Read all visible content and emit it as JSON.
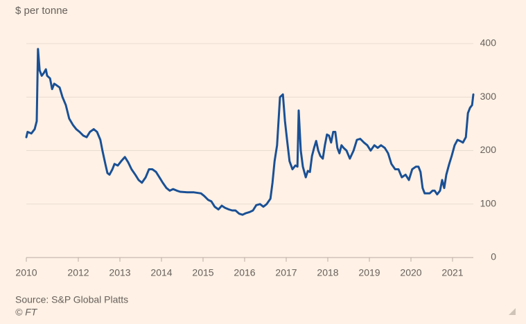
{
  "chart_data": {
    "type": "line",
    "y_label": "$ per tonne",
    "source": "Source: S&P Global Platts",
    "credit": "© FT",
    "xlim": [
      2010.75,
      2021.5
    ],
    "xticks": [
      {
        "value": 2010.75,
        "label": "2010"
      },
      2012,
      2013,
      2014,
      2015,
      2016,
      2017,
      2018,
      2019,
      2020,
      2021
    ],
    "ylim": [
      0,
      400
    ],
    "yticks": [
      0,
      100,
      200,
      300,
      400
    ],
    "grid": true,
    "x": [
      2010.75,
      2010.78,
      2010.87,
      2010.95,
      2011.0,
      2011.03,
      2011.07,
      2011.12,
      2011.17,
      2011.22,
      2011.25,
      2011.32,
      2011.37,
      2011.42,
      2011.48,
      2011.55,
      2011.62,
      2011.7,
      2011.78,
      2011.87,
      2011.95,
      2012.03,
      2012.12,
      2012.2,
      2012.28,
      2012.37,
      2012.45,
      2012.53,
      2012.58,
      2012.65,
      2012.7,
      2012.75,
      2012.82,
      2012.87,
      2012.95,
      2013.03,
      2013.12,
      2013.2,
      2013.28,
      2013.37,
      2013.45,
      2013.53,
      2013.62,
      2013.7,
      2013.78,
      2013.87,
      2013.95,
      2014.03,
      2014.12,
      2014.2,
      2014.28,
      2014.37,
      2014.45,
      2014.62,
      2014.78,
      2014.95,
      2015.03,
      2015.12,
      2015.2,
      2015.28,
      2015.37,
      2015.45,
      2015.53,
      2015.62,
      2015.7,
      2015.78,
      2015.87,
      2015.95,
      2016.03,
      2016.12,
      2016.2,
      2016.28,
      2016.37,
      2016.45,
      2016.53,
      2016.62,
      2016.67,
      2016.72,
      2016.78,
      2016.85,
      2016.92,
      2016.97,
      2017.02,
      2017.08,
      2017.15,
      2017.22,
      2017.27,
      2017.3,
      2017.35,
      2017.4,
      2017.47,
      2017.52,
      2017.57,
      2017.62,
      2017.67,
      2017.72,
      2017.77,
      2017.82,
      2017.88,
      2017.93,
      2017.98,
      2018.03,
      2018.08,
      2018.13,
      2018.18,
      2018.23,
      2018.28,
      2018.33,
      2018.38,
      2018.45,
      2018.53,
      2018.62,
      2018.7,
      2018.78,
      2018.87,
      2018.95,
      2019.03,
      2019.12,
      2019.2,
      2019.28,
      2019.37,
      2019.45,
      2019.53,
      2019.62,
      2019.7,
      2019.78,
      2019.87,
      2019.95,
      2020.03,
      2020.12,
      2020.18,
      2020.23,
      2020.28,
      2020.33,
      2020.4,
      2020.45,
      2020.52,
      2020.57,
      2020.63,
      2020.7,
      2020.75,
      2020.8,
      2020.85,
      2020.92,
      2020.98,
      2021.05,
      2021.12,
      2021.18,
      2021.25,
      2021.32,
      2021.37,
      2021.42,
      2021.47,
      2021.5
    ],
    "series": [
      {
        "color": "#1a5095",
        "values": [
          225,
          235,
          232,
          240,
          255,
          390,
          350,
          340,
          345,
          352,
          340,
          335,
          315,
          325,
          322,
          318,
          300,
          285,
          260,
          248,
          240,
          235,
          228,
          225,
          235,
          240,
          235,
          220,
          200,
          175,
          158,
          155,
          165,
          175,
          172,
          180,
          188,
          178,
          165,
          155,
          145,
          140,
          150,
          165,
          165,
          160,
          150,
          140,
          130,
          125,
          128,
          125,
          123,
          122,
          122,
          120,
          115,
          108,
          105,
          95,
          90,
          97,
          93,
          90,
          88,
          88,
          82,
          80,
          83,
          85,
          88,
          98,
          100,
          95,
          100,
          110,
          140,
          180,
          210,
          300,
          305,
          255,
          220,
          180,
          165,
          172,
          170,
          275,
          200,
          170,
          150,
          162,
          160,
          190,
          205,
          218,
          200,
          190,
          185,
          210,
          230,
          228,
          215,
          235,
          235,
          205,
          195,
          210,
          205,
          200,
          185,
          200,
          220,
          222,
          215,
          210,
          200,
          210,
          205,
          210,
          205,
          195,
          175,
          165,
          165,
          150,
          155,
          145,
          165,
          170,
          170,
          160,
          130,
          120,
          120,
          120,
          125,
          125,
          118,
          125,
          145,
          130,
          155,
          175,
          190,
          210,
          220,
          218,
          215,
          225,
          270,
          280,
          285,
          305
        ]
      }
    ]
  }
}
